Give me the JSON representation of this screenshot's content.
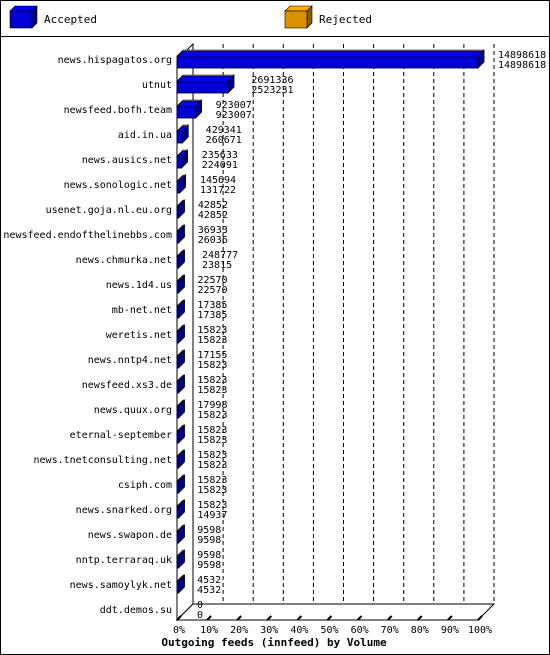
{
  "chart_data": {
    "type": "bar",
    "title": "Outgoing feeds (innfeed) by Volume",
    "legend_position": "top",
    "series": [
      {
        "name": "Accepted",
        "color": "#0000ff"
      },
      {
        "name": "Rejected",
        "color": "#ffaa00"
      }
    ],
    "x_ticks": [
      "0%",
      "10%",
      "20%",
      "30%",
      "40%",
      "50%",
      "60%",
      "70%",
      "80%",
      "90%",
      "100%"
    ],
    "x_range": [
      0,
      100
    ],
    "grid": true,
    "rows": [
      {
        "label": "news.hispagatos.org",
        "accepted": 14898618,
        "rejected": 14898618,
        "accepted_label": "14898618",
        "rejected_label": "14898618"
      },
      {
        "label": "utnut",
        "accepted": 2691336,
        "rejected": 2523231,
        "accepted_label": "2691336",
        "rejected_label": "2523231"
      },
      {
        "label": "newsfeed.bofh.team",
        "accepted": 923007,
        "rejected": 923007,
        "accepted_label": "923007",
        "rejected_label": "923007"
      },
      {
        "label": "aid.in.ua",
        "accepted": 429341,
        "rejected": 260671,
        "accepted_label": "429341",
        "rejected_label": "260671"
      },
      {
        "label": "news.ausics.net",
        "accepted": 235633,
        "rejected": 224091,
        "accepted_label": "235633",
        "rejected_label": "224091"
      },
      {
        "label": "news.sonologic.net",
        "accepted": 145694,
        "rejected": 131722,
        "accepted_label": "145694",
        "rejected_label": "131722"
      },
      {
        "label": "usenet.goja.nl.eu.org",
        "accepted": 42852,
        "rejected": 42852,
        "accepted_label": "42852",
        "rejected_label": "42852"
      },
      {
        "label": "newsfeed.endofthelinebbs.com",
        "accepted": 36933,
        "rejected": 26036,
        "accepted_label": "36933",
        "rejected_label": "26036"
      },
      {
        "label": "news.chmurka.net",
        "accepted": 248777,
        "rejected": 23815,
        "accepted_label": "248777",
        "rejected_label": "23815"
      },
      {
        "label": "news.1d4.us",
        "accepted": 22570,
        "rejected": 22570,
        "accepted_label": "22570",
        "rejected_label": "22570"
      },
      {
        "label": "mb-net.net",
        "accepted": 17385,
        "rejected": 17385,
        "accepted_label": "17385",
        "rejected_label": "17385"
      },
      {
        "label": "weretis.net",
        "accepted": 15823,
        "rejected": 15823,
        "accepted_label": "15823",
        "rejected_label": "15823"
      },
      {
        "label": "news.nntp4.net",
        "accepted": 17155,
        "rejected": 15823,
        "accepted_label": "17155",
        "rejected_label": "15823"
      },
      {
        "label": "newsfeed.xs3.de",
        "accepted": 15823,
        "rejected": 15823,
        "accepted_label": "15823",
        "rejected_label": "15823"
      },
      {
        "label": "news.quux.org",
        "accepted": 17998,
        "rejected": 15823,
        "accepted_label": "17998",
        "rejected_label": "15823"
      },
      {
        "label": "eternal-september",
        "accepted": 15823,
        "rejected": 15823,
        "accepted_label": "15823",
        "rejected_label": "15823"
      },
      {
        "label": "news.tnetconsulting.net",
        "accepted": 15823,
        "rejected": 15823,
        "accepted_label": "15823",
        "rejected_label": "15823"
      },
      {
        "label": "csiph.com",
        "accepted": 15823,
        "rejected": 15823,
        "accepted_label": "15823",
        "rejected_label": "15823"
      },
      {
        "label": "news.snarked.org",
        "accepted": 15823,
        "rejected": 14937,
        "accepted_label": "15823",
        "rejected_label": "14937"
      },
      {
        "label": "news.swapon.de",
        "accepted": 9598,
        "rejected": 9598,
        "accepted_label": "9598",
        "rejected_label": "9598"
      },
      {
        "label": "nntp.terraraq.uk",
        "accepted": 9598,
        "rejected": 9598,
        "accepted_label": "9598",
        "rejected_label": "9598"
      },
      {
        "label": "news.samoylyk.net",
        "accepted": 4532,
        "rejected": 4532,
        "accepted_label": "4532",
        "rejected_label": "4532"
      },
      {
        "label": "ddt.demos.su",
        "accepted": 0,
        "rejected": 0,
        "accepted_label": "0",
        "rejected_label": "0"
      }
    ]
  }
}
